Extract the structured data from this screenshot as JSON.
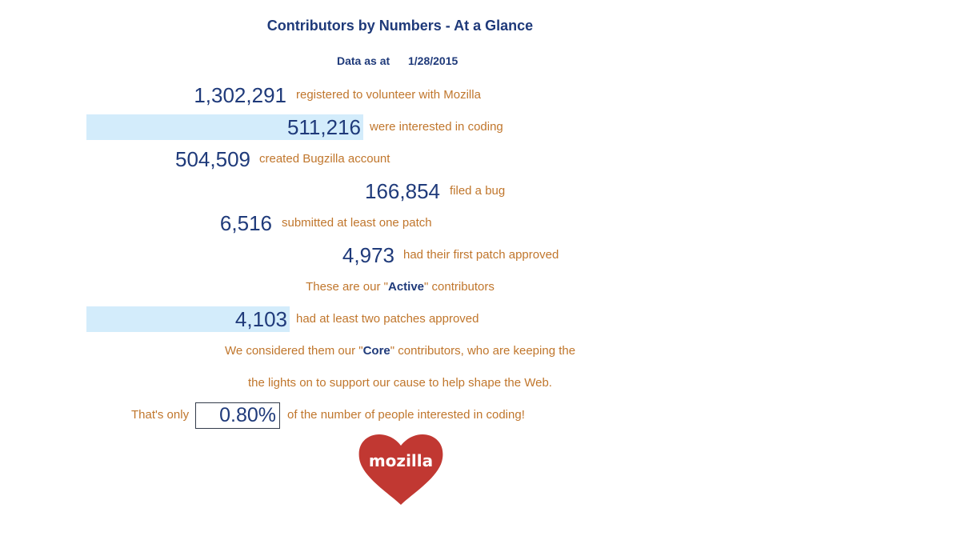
{
  "title": "Contributors by Numbers - At a Glance",
  "date_label": "Data as at",
  "date_value": "1/28/2015",
  "rows": [
    {
      "number": "1,302,291",
      "text": "registered to volunteer with Mozilla"
    },
    {
      "number": "511,216",
      "text": "were interested in coding"
    },
    {
      "number": "504,509",
      "text": "created Bugzilla account"
    },
    {
      "number": "166,854",
      "text": "filed a bug"
    },
    {
      "number": "6,516",
      "text": "submitted at least one patch"
    },
    {
      "number": "4,973",
      "text": "had their first patch approved"
    },
    {
      "number": "4,103",
      "text": "had at least two patches approved"
    }
  ],
  "active_note": {
    "before": "These are our \"",
    "emphasis": "Active",
    "after": "\" contributors"
  },
  "core_note": {
    "before": "We considered them our \"",
    "emphasis": "Core",
    "after": "\" contributors, who are keeping the",
    "line2": "the lights on to support our cause to help shape the Web."
  },
  "ratio": {
    "prefix": "That's only",
    "value": "0.80%",
    "suffix": "of the number of people interested in coding!"
  },
  "logo": {
    "text": "mozilla",
    "icon": "heart-icon",
    "color": "#c13832"
  },
  "colors": {
    "number_blue": "#1f3a7a",
    "text_orange": "#c0762c",
    "highlight": "#d3ecfb"
  }
}
